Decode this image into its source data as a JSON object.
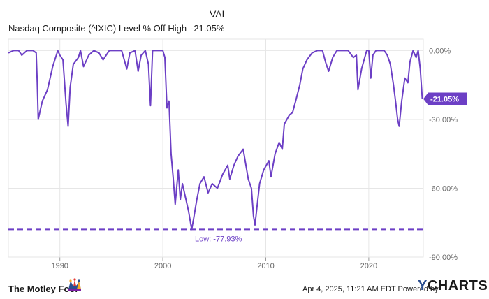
{
  "chart_data": {
    "type": "line",
    "title": "Nasdaq Composite (^IXIC) Level % Off High",
    "legend_header": "VAL",
    "series": [
      {
        "name": "Nasdaq Composite (^IXIC) Level % Off High",
        "color": "#6c3fc5",
        "last_value_label": "-21.05%",
        "last_value": -21.05,
        "x": [
          1985.0,
          1985.5,
          1986.0,
          1986.3,
          1986.8,
          1987.0,
          1987.4,
          1987.7,
          1987.8,
          1987.9,
          1988.3,
          1988.8,
          1989.3,
          1989.8,
          1990.0,
          1990.3,
          1990.6,
          1990.8,
          1991.0,
          1991.3,
          1991.8,
          1992.0,
          1992.3,
          1992.8,
          1993.3,
          1993.8,
          1994.2,
          1994.8,
          1995.2,
          1996.0,
          1996.5,
          1996.8,
          1997.3,
          1997.6,
          1997.9,
          1998.3,
          1998.6,
          1998.8,
          1999.0,
          1999.5,
          2000.0,
          2000.2,
          2000.4,
          2000.6,
          2000.8,
          2001.0,
          2001.2,
          2001.5,
          2001.7,
          2001.9,
          2002.2,
          2002.5,
          2002.8,
          2003.0,
          2003.3,
          2003.6,
          2004.0,
          2004.4,
          2004.8,
          2005.3,
          2005.8,
          2006.3,
          2006.5,
          2006.9,
          2007.3,
          2007.8,
          2008.3,
          2008.6,
          2008.8,
          2008.95,
          2009.1,
          2009.4,
          2009.8,
          2010.3,
          2010.5,
          2010.9,
          2011.3,
          2011.6,
          2011.8,
          2012.3,
          2012.6,
          2012.9,
          2013.3,
          2013.6,
          2014.0,
          2014.5,
          2015.0,
          2015.5,
          2015.8,
          2016.1,
          2016.5,
          2016.9,
          2017.3,
          2018.0,
          2018.5,
          2018.8,
          2018.95,
          2019.3,
          2019.8,
          2020.0,
          2020.2,
          2020.4,
          2020.7,
          2021.0,
          2021.5,
          2021.8,
          2022.1,
          2022.4,
          2022.6,
          2022.8,
          2022.95,
          2023.2,
          2023.5,
          2023.8,
          2024.0,
          2024.3,
          2024.6,
          2024.8,
          2025.0,
          2025.2
        ],
        "y": [
          -1,
          0,
          0,
          -2,
          0,
          0,
          0,
          -1,
          -14,
          -30,
          -22,
          -17,
          -7,
          0,
          -2,
          -4,
          -23,
          -33,
          -16,
          -6,
          -3,
          0,
          -7,
          -2,
          0,
          -1,
          -4,
          0,
          0,
          0,
          -8,
          -1,
          0,
          -9,
          -2,
          0,
          -6,
          -24,
          0,
          0,
          0,
          -3,
          -25,
          -22,
          -45,
          -55,
          -67,
          -52,
          -65,
          -58,
          -64,
          -70,
          -77.93,
          -73,
          -65,
          -58,
          -55,
          -62,
          -58,
          -60,
          -54,
          -50,
          -56,
          -50,
          -46,
          -43,
          -56,
          -60,
          -72,
          -76,
          -70,
          -58,
          -52,
          -48,
          -55,
          -45,
          -40,
          -43,
          -32,
          -28,
          -27,
          -22,
          -15,
          -8,
          -4,
          -1,
          0,
          0,
          -5,
          -9,
          -3,
          0,
          0,
          0,
          -3,
          -2,
          -17,
          -8,
          0,
          0,
          -12,
          -2,
          0,
          0,
          0,
          -2,
          -6,
          -15,
          -22,
          -30,
          -33,
          -22,
          -12,
          -14,
          -5,
          0,
          -3,
          0,
          -8,
          -21.05
        ]
      }
    ],
    "xticks": [
      1990,
      2000,
      2010,
      2020
    ],
    "yticks": [
      0,
      -30,
      -60,
      -90
    ],
    "ytick_labels": [
      "0.00%",
      "-30.00%",
      "-60.00%",
      "-90.00%"
    ],
    "xlim": [
      1985.0,
      2025.3
    ],
    "ylim": [
      -90,
      5
    ],
    "grid": true,
    "reference_line": {
      "value": -77.93,
      "label": "Low: -77.93%",
      "style": "dashed"
    }
  },
  "footer": {
    "brand": "The Motley Fool",
    "timestamp": "Apr 4, 2025, 11:21 AM EDT Powered by",
    "ycharts_y": "Y",
    "ycharts_rest": "CHARTS"
  }
}
